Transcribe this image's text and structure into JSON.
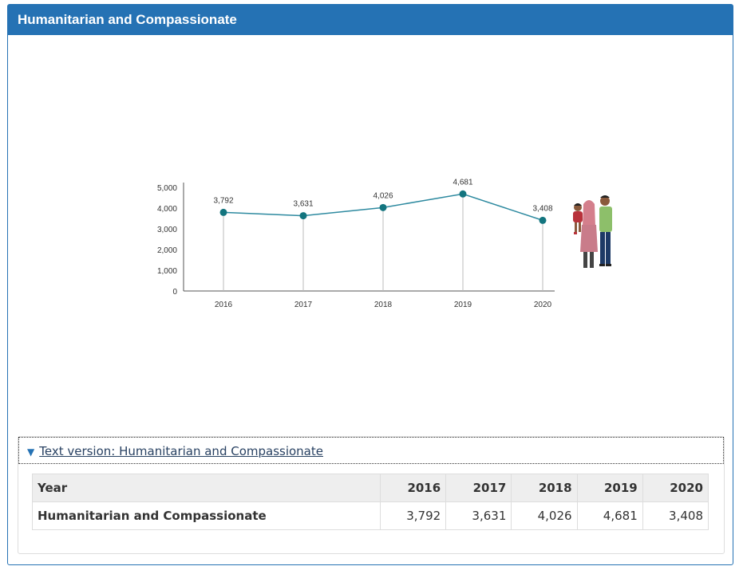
{
  "panel": {
    "title": "Humanitarian and Compassionate"
  },
  "chart_data": {
    "type": "line",
    "categories": [
      "2016",
      "2017",
      "2018",
      "2019",
      "2020"
    ],
    "values": [
      3792,
      3631,
      4026,
      4681,
      3408
    ],
    "value_labels": [
      "3,792",
      "3,631",
      "4,026",
      "4,681",
      "3,408"
    ],
    "y_ticks": [
      "0",
      "1,000",
      "2,000",
      "3,000",
      "4,000",
      "5,000"
    ],
    "ylim": [
      0,
      5000
    ],
    "title": "",
    "xlabel": "",
    "ylabel": "",
    "line_color": "#2e8aa0",
    "marker_color": "#13757f",
    "grid": false
  },
  "text_version": {
    "summary": "Text version: Humanitarian and Compassionate",
    "columns": [
      "Year",
      "2016",
      "2017",
      "2018",
      "2019",
      "2020"
    ],
    "rows": [
      {
        "label": "Humanitarian and Compassionate",
        "values": [
          "3,792",
          "3,631",
          "4,026",
          "4,681",
          "3,408"
        ]
      }
    ]
  }
}
